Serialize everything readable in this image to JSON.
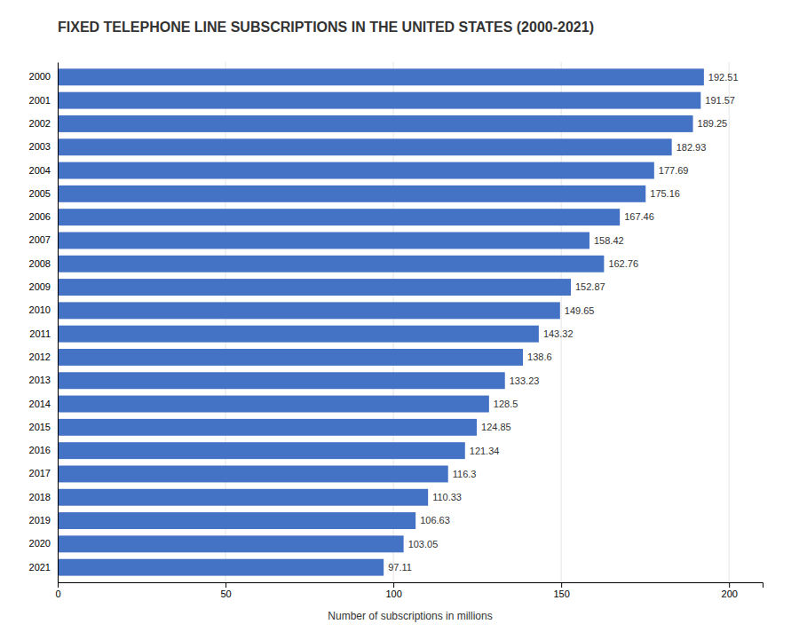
{
  "chart_data": {
    "type": "bar",
    "orientation": "horizontal",
    "title": "FIXED TELEPHONE LINE SUBSCRIPTIONS IN THE UNITED STATES (2000-2021)",
    "xlabel": "Number of subscriptions in millions",
    "categories": [
      "2000",
      "2001",
      "2002",
      "2003",
      "2004",
      "2005",
      "2006",
      "2007",
      "2008",
      "2009",
      "2010",
      "2011",
      "2012",
      "2013",
      "2014",
      "2015",
      "2016",
      "2017",
      "2018",
      "2019",
      "2020",
      "2021"
    ],
    "values": [
      192.51,
      191.57,
      189.25,
      182.93,
      177.69,
      175.16,
      167.46,
      158.42,
      162.76,
      152.87,
      149.65,
      143.32,
      138.6,
      133.23,
      128.5,
      124.85,
      121.34,
      116.3,
      110.33,
      106.63,
      103.05,
      97.11
    ],
    "color": "#4472C4",
    "xlim": [
      0,
      210
    ],
    "xticks": [
      0,
      50,
      100,
      150,
      200
    ],
    "grid": true,
    "data_labels": true
  }
}
